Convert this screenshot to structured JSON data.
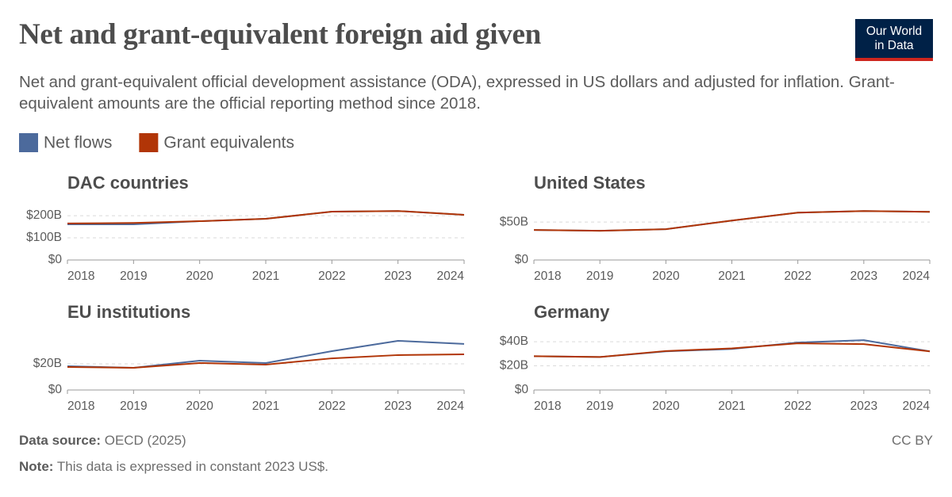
{
  "header": {
    "title": "Net and grant-equivalent foreign aid given",
    "subtitle": "Net and grant-equivalent official development assistance (ODA), expressed in US dollars and adjusted for inflation. Grant-equivalent amounts are the official reporting method since 2018.",
    "logo": [
      "Our World",
      "in Data"
    ]
  },
  "footer": {
    "source_label": "Data source:",
    "source": "OECD (2025)",
    "note_label": "Note:",
    "note": "This data is expressed in constant 2023 US$.",
    "license": "CC BY"
  },
  "chart_data": [
    {
      "type": "line",
      "title": "DAC countries",
      "x": [
        2018,
        2019,
        2020,
        2021,
        2022,
        2023,
        2024
      ],
      "xlim": [
        2018,
        2024
      ],
      "xticks": [
        2018,
        2019,
        2020,
        2021,
        2022,
        2023,
        2024
      ],
      "ylim": [
        0,
        236
      ],
      "yticks": [
        {
          "value": 0,
          "label": "$0"
        },
        {
          "value": 100,
          "label": "$100B"
        },
        {
          "value": 200,
          "label": "$200B"
        }
      ],
      "grid": true,
      "series": [
        {
          "name": "Net flows",
          "color": "#4c6a9c",
          "values": [
            161,
            161,
            175,
            186,
            218,
            221,
            204
          ]
        },
        {
          "name": "Grant equivalents",
          "color": "#b13507",
          "values": [
            165,
            167,
            175,
            186,
            218,
            221,
            204
          ]
        }
      ]
    },
    {
      "type": "line",
      "title": "United States",
      "x": [
        2018,
        2019,
        2020,
        2021,
        2022,
        2023,
        2024
      ],
      "xlim": [
        2018,
        2024
      ],
      "xticks": [
        2018,
        2019,
        2020,
        2021,
        2022,
        2023,
        2024
      ],
      "ylim": [
        0,
        69
      ],
      "yticks": [
        {
          "value": 0,
          "label": "$0"
        },
        {
          "value": 50,
          "label": "$50B"
        }
      ],
      "grid": true,
      "series": [
        {
          "name": "Net flows",
          "color": "#4c6a9c",
          "values": [
            39.6,
            38.5,
            40.6,
            52,
            62.5,
            64.6,
            63.5
          ]
        },
        {
          "name": "Grant equivalents",
          "color": "#b13507",
          "values": [
            39.6,
            38.5,
            40.6,
            52,
            62.5,
            64.6,
            63.5
          ]
        }
      ]
    },
    {
      "type": "line",
      "title": "EU institutions",
      "x": [
        2018,
        2019,
        2020,
        2021,
        2022,
        2023,
        2024
      ],
      "xlim": [
        2018,
        2024
      ],
      "xticks": [
        2018,
        2019,
        2020,
        2021,
        2022,
        2023,
        2024
      ],
      "ylim": [
        0,
        40.6
      ],
      "yticks": [
        {
          "value": 0,
          "label": "$0"
        },
        {
          "value": 20,
          "label": "$20B"
        }
      ],
      "grid": true,
      "series": [
        {
          "name": "Net flows",
          "color": "#4c6a9c",
          "values": [
            18.2,
            17,
            22.4,
            20.6,
            29.7,
            37.6,
            35.2
          ]
        },
        {
          "name": "Grant equivalents",
          "color": "#b13507",
          "values": [
            17.6,
            17,
            20.6,
            19.4,
            24.2,
            26.7,
            27.3
          ]
        }
      ]
    },
    {
      "type": "line",
      "title": "Germany",
      "x": [
        2018,
        2019,
        2020,
        2021,
        2022,
        2023,
        2024
      ],
      "xlim": [
        2018,
        2024
      ],
      "xticks": [
        2018,
        2019,
        2020,
        2021,
        2022,
        2023,
        2024
      ],
      "ylim": [
        0,
        44
      ],
      "yticks": [
        {
          "value": 0,
          "label": "$0"
        },
        {
          "value": 20,
          "label": "$20B"
        },
        {
          "value": 40,
          "label": "$40B"
        }
      ],
      "grid": true,
      "series": [
        {
          "name": "Net flows",
          "color": "#4c6a9c",
          "values": [
            28,
            27.3,
            32,
            34,
            39.3,
            41.3,
            32
          ]
        },
        {
          "name": "Grant equivalents",
          "color": "#b13507",
          "values": [
            28,
            27.3,
            32.3,
            34.5,
            38.7,
            38,
            32
          ]
        }
      ]
    }
  ]
}
